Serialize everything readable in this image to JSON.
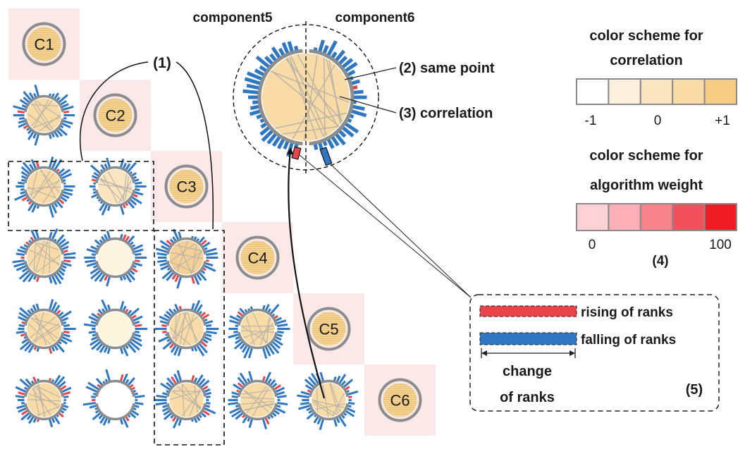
{
  "matrix": {
    "diagonal_labels": [
      "C1",
      "C2",
      "C3",
      "C4",
      "C5",
      "C6"
    ]
  },
  "annotations": {
    "marker_1": "(1)",
    "component5": "component5",
    "component6": "component6",
    "same_point": "(2) same point",
    "correlation": "(3) correlation",
    "marker_4": "(4)",
    "marker_5": "(5)"
  },
  "correlation_legend": {
    "title_line1": "color scheme for",
    "title_line2": "correlation",
    "tick_min": "-1",
    "tick_mid": "0",
    "tick_max": "+1",
    "colors": [
      "#ffffff",
      "#fdf1de",
      "#fbe5c0",
      "#f9dba8",
      "#f7cd86"
    ]
  },
  "weight_legend": {
    "title_line1": "color scheme for",
    "title_line2": "algorithm weight",
    "tick_min": "0",
    "tick_max": "100",
    "colors": [
      "#fcd2d6",
      "#fab0b6",
      "#f6838c",
      "#f2505c",
      "#ee1c25"
    ]
  },
  "rank_legend": {
    "rising": "rising of ranks",
    "falling": "falling of ranks",
    "change_line1": "change",
    "change_line2": "of ranks",
    "rising_color": "#e8444a",
    "falling_color": "#2f77c0"
  }
}
